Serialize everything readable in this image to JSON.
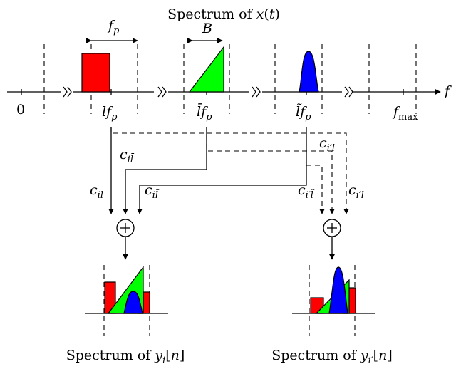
{
  "title": "Spectrum of x(t)",
  "bottom_left_title": "Spectrum of y_i[n]",
  "bottom_right_title": "Spectrum of y_i'[n]",
  "axis": {
    "f_label": "f",
    "zero_label": "0",
    "fmax_label": "f_max"
  },
  "bands": {
    "red_label": "l f_p",
    "green_label": "l̄ f_p",
    "blue_label": "l̃ f_p",
    "fp_label": "f_p",
    "B_label": "B"
  },
  "coefficients": {
    "c_il": "c_il",
    "c_il_bar": "c_il̄",
    "c_il_tilde": "c_il̃",
    "c_i2l_bar": "c_i'l̄",
    "c_i2l_tilde": "c_i'l̃",
    "c_i2l": "c_i'l"
  },
  "adder_symbol": "+",
  "colors": {
    "red": "#ff0000",
    "green": "#00ff00",
    "blue": "#0000ff"
  }
}
